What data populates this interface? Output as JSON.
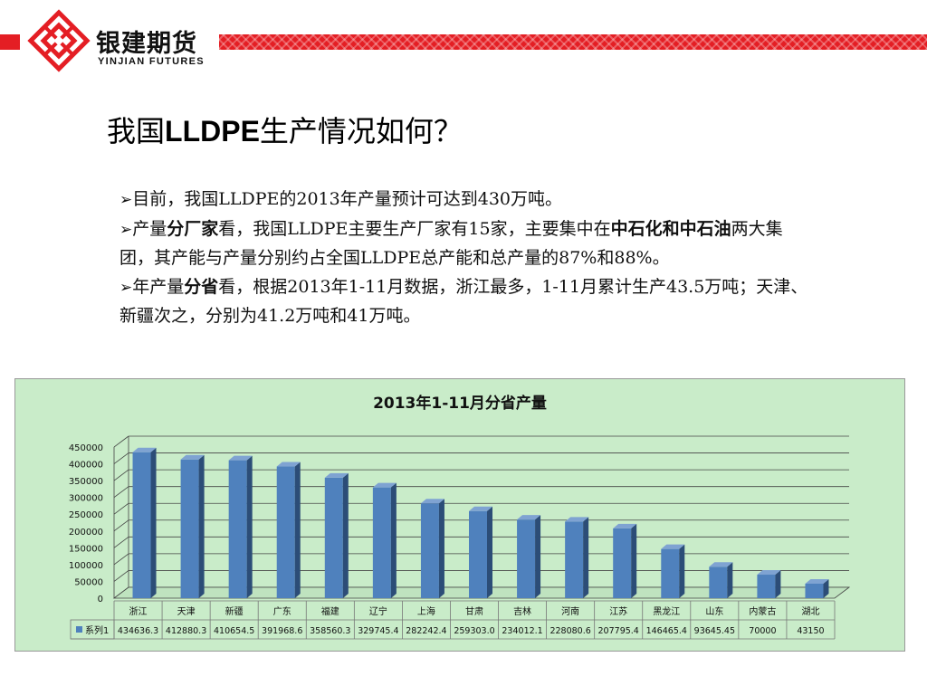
{
  "header": {
    "brand_cn": "银建期货",
    "brand_en": "YINJIAN FUTURES",
    "accent_color": "#e41e24",
    "logo_icon": "lattice-diamond-logo"
  },
  "slide": {
    "title_cn_prefix": "我国",
    "title_latin": "LLDPE",
    "title_cn_suffix": "生产情况如何？",
    "bullets": {
      "b1": {
        "marker": "➢",
        "text": "目前，我国LLDPE的2013年产量预计可达到430万吨。"
      },
      "b2": {
        "marker": "➢",
        "t1": "产量",
        "bold1": "分厂家",
        "t2": "看，我国LLDPE主要生产厂家有15家，主要集中在",
        "bold2": "中石化和中石油",
        "t3": "两大集团，其产能与产量分别约占全国LLDPE总产能和总产量的87%和88%。"
      },
      "b3": {
        "marker": "➢",
        "t1": "年产量",
        "bold1": "分省",
        "t2": "看，根据2013年1-11月数据，浙江最多，1-11月累计生产43.5万吨；天津、新疆次之，分别为41.2万吨和41万吨。"
      }
    }
  },
  "chart_data": {
    "type": "bar",
    "title": "2013年1-11月分省产量",
    "categories": [
      "浙江",
      "天津",
      "新疆",
      "广东",
      "福建",
      "辽宁",
      "上海",
      "甘肃",
      "吉林",
      "河南",
      "江苏",
      "黑龙江",
      "山东",
      "内蒙古",
      "湖北"
    ],
    "series": [
      {
        "name": "系列1",
        "values": [
          434636.3,
          412880.3,
          410654.5,
          391968.6,
          358560.3,
          329745.4,
          282242.4,
          259303.0,
          234012.1,
          228080.6,
          207795.4,
          146465.4,
          93645.45,
          70000,
          43150
        ],
        "labels": [
          "434636.3",
          "412880.3",
          "410654.5",
          "391968.6",
          "358560.3",
          "329745.4",
          "282242.4",
          "259303.0",
          "234012.1",
          "228080.6",
          "207795.4",
          "146465.4",
          "93645.45",
          "70000",
          "43150"
        ]
      }
    ],
    "ylim": [
      0,
      450000
    ],
    "yticks": [
      "0",
      "50000",
      "100000",
      "150000",
      "200000",
      "250000",
      "300000",
      "350000",
      "400000",
      "450000"
    ],
    "grid": true,
    "data_table": true,
    "background_color": "#c9ecc9",
    "bar_color": "#4f81bd"
  }
}
